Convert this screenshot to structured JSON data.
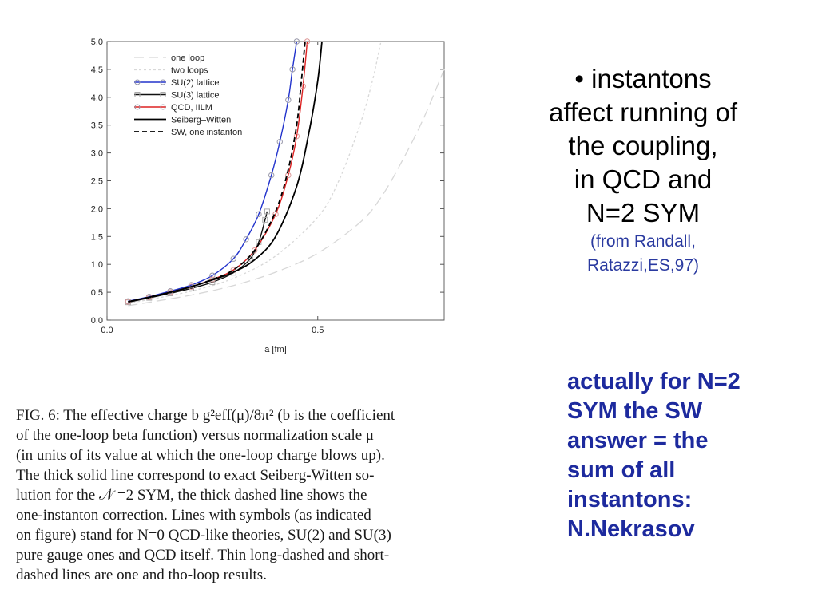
{
  "chart_data": {
    "type": "line",
    "xlabel": "a [fm]",
    "ylabel": "",
    "xlim": [
      0.0,
      0.8
    ],
    "ylim": [
      0.0,
      5.0
    ],
    "x_ticks": [
      "0.0",
      "0.5"
    ],
    "y_ticks": [
      "0.0",
      "0.5",
      "1.0",
      "1.5",
      "2.0",
      "2.5",
      "3.0",
      "3.5",
      "4.0",
      "4.5",
      "5.0"
    ],
    "legend_position": "top-left",
    "series": [
      {
        "name": "one loop",
        "color": "#d8d8d8",
        "style": "long-dash",
        "x": [
          0.05,
          0.1,
          0.2,
          0.3,
          0.4,
          0.5,
          0.6,
          0.65,
          0.7,
          0.75,
          0.8
        ],
        "y": [
          0.26,
          0.32,
          0.45,
          0.62,
          0.86,
          1.2,
          1.75,
          2.2,
          2.85,
          3.6,
          4.5
        ]
      },
      {
        "name": "two loops",
        "color": "#d8d8d8",
        "style": "short-dash",
        "x": [
          0.05,
          0.1,
          0.2,
          0.3,
          0.4,
          0.5,
          0.55,
          0.6,
          0.63,
          0.65
        ],
        "y": [
          0.3,
          0.37,
          0.52,
          0.75,
          1.15,
          1.85,
          2.5,
          3.5,
          4.3,
          5.0
        ]
      },
      {
        "name": "SU(2)  lattice",
        "color": "#2233cc",
        "style": "solid",
        "marker": "circle",
        "x": [
          0.05,
          0.1,
          0.15,
          0.2,
          0.25,
          0.3,
          0.33,
          0.36,
          0.39,
          0.41,
          0.43,
          0.44,
          0.45
        ],
        "y": [
          0.34,
          0.42,
          0.52,
          0.63,
          0.8,
          1.1,
          1.45,
          1.9,
          2.6,
          3.2,
          3.95,
          4.5,
          5.0
        ]
      },
      {
        "name": "SU(3) lattice",
        "color": "#111111",
        "style": "solid",
        "marker": "square",
        "x": [
          0.05,
          0.1,
          0.15,
          0.2,
          0.25,
          0.3,
          0.34,
          0.36,
          0.375,
          0.38
        ],
        "y": [
          0.32,
          0.4,
          0.48,
          0.57,
          0.68,
          0.85,
          1.1,
          1.4,
          1.8,
          1.95
        ]
      },
      {
        "name": "QCD, IILM",
        "color": "#dd2222",
        "style": "solid",
        "marker": "circle",
        "x": [
          0.05,
          0.1,
          0.15,
          0.2,
          0.25,
          0.3,
          0.35,
          0.4,
          0.43,
          0.45,
          0.465,
          0.475
        ],
        "y": [
          0.33,
          0.41,
          0.5,
          0.6,
          0.73,
          0.9,
          1.25,
          1.9,
          2.6,
          3.3,
          4.2,
          5.0
        ]
      },
      {
        "name": "Seiberg–Witten",
        "color": "#000000",
        "style": "solid",
        "x": [
          0.05,
          0.1,
          0.15,
          0.2,
          0.25,
          0.3,
          0.35,
          0.4,
          0.45,
          0.48,
          0.5,
          0.51
        ],
        "y": [
          0.33,
          0.41,
          0.5,
          0.6,
          0.72,
          0.86,
          1.08,
          1.5,
          2.4,
          3.4,
          4.3,
          5.0
        ]
      },
      {
        "name": "SW, one instanton",
        "color": "#000000",
        "style": "dashed",
        "x": [
          0.05,
          0.1,
          0.15,
          0.2,
          0.25,
          0.3,
          0.35,
          0.4,
          0.43,
          0.45,
          0.46,
          0.47
        ],
        "y": [
          0.33,
          0.41,
          0.5,
          0.6,
          0.73,
          0.9,
          1.25,
          1.95,
          2.7,
          3.5,
          4.2,
          5.0
        ]
      }
    ]
  },
  "bullet": {
    "lines": [
      "• instantons",
      "affect running of",
      "the  coupling,",
      "in QCD and",
      "N=2 SYM"
    ],
    "citation_lines": [
      "(from Randall,",
      "Ratazzi,ES,97)"
    ]
  },
  "note": {
    "lines": [
      "actually for N=2",
      "SYM the SW",
      "answer = the",
      "sum of all",
      "instantons:",
      "N.Nekrasov"
    ]
  },
  "caption": {
    "lines": [
      "FIG. 6: The effective charge b g²eff(μ)/8π² (b is the coefficient",
      "of the one-loop beta function) versus normalization scale μ",
      "(in units of its value at which the one-loop charge blows up).",
      "The thick solid line correspond to exact Seiberg-Witten so-",
      "lution for the 𝒩 =2 SYM, the thick dashed line shows the",
      "one-instanton correction.  Lines with symbols (as indicated",
      "on figure) stand for N=0 QCD-like theories, SU(2) and SU(3)",
      "pure gauge ones and QCD itself.  Thin long-dashed and short-",
      "dashed lines are one and tho-loop results."
    ]
  }
}
